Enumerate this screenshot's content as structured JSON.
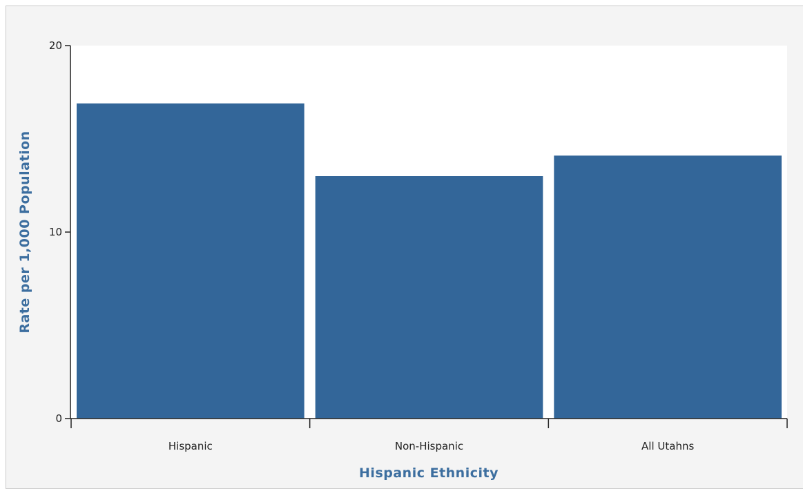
{
  "colors": {
    "bar": "#336699",
    "axis_title": "#3c6e9f",
    "panel_background": "#f4f4f4",
    "plot_background": "#ffffff"
  },
  "chart_data": {
    "type": "bar",
    "categories": [
      "Hispanic",
      "Non-Hispanic",
      "All Utahns"
    ],
    "values": [
      16.9,
      13.0,
      14.1
    ],
    "xlabel": "Hispanic Ethnicity",
    "ylabel": "Rate per 1,000 Population",
    "ylim": [
      0,
      20
    ],
    "yticks": [
      0,
      10,
      20
    ],
    "grid": false,
    "legend": "none"
  }
}
